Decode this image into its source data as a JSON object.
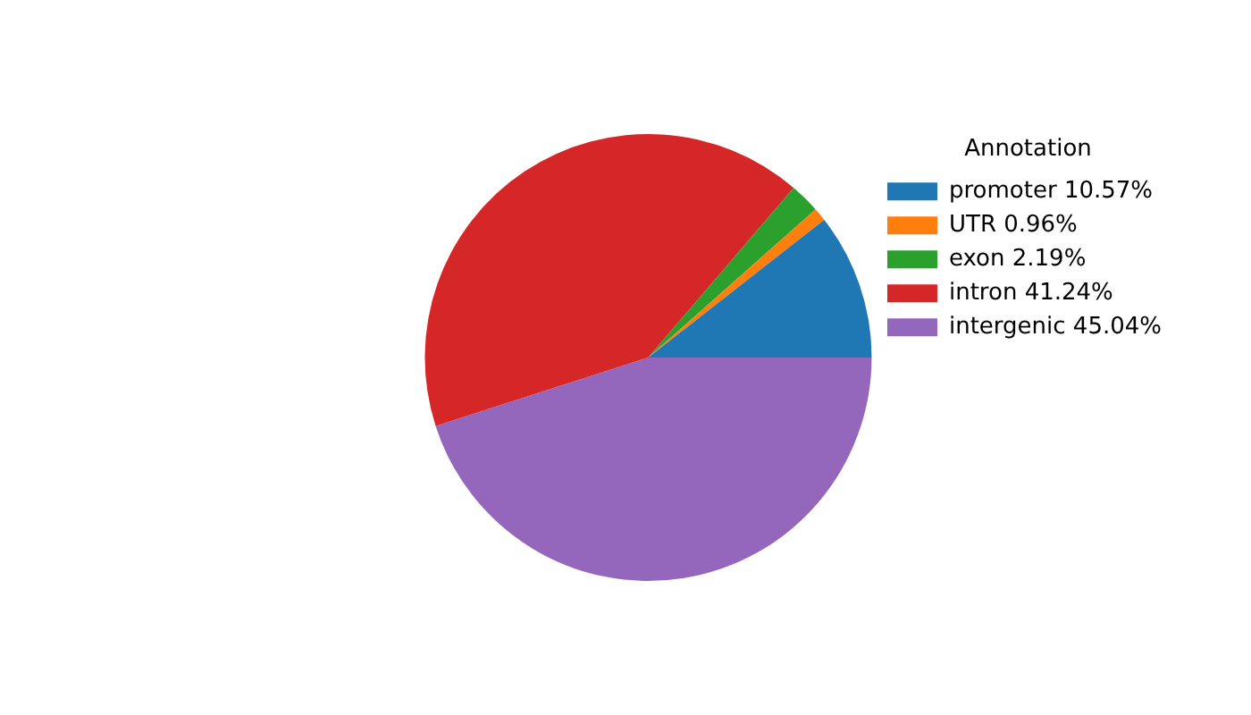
{
  "chart_data": {
    "type": "pie",
    "legend_title": "Annotation",
    "legend": "top right",
    "categories": [
      "promoter 10.57%",
      "UTR 0.96%",
      "exon 2.19%",
      "intron 41.24%",
      "intergenic 45.04%"
    ],
    "values": [
      10.57,
      0.96,
      2.19,
      41.24,
      45.04
    ],
    "colors": [
      "#1f77b4",
      "#ff7f0e",
      "#2ca02c",
      "#d62728",
      "#9467bd"
    ]
  }
}
